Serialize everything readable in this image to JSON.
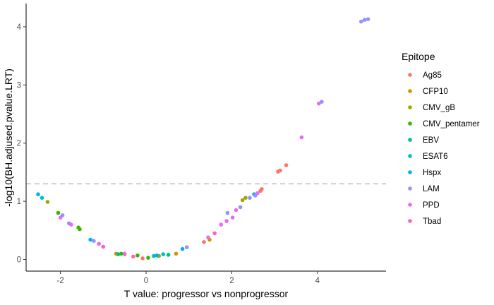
{
  "chart_data": {
    "type": "scatter",
    "title": "",
    "xlabel": "T value: progressor vs nonprogressor",
    "ylabel": "-log10(BH.adjused.pvalue.LRT)",
    "xlim": [
      -2.8,
      5.6
    ],
    "ylim": [
      -0.2,
      4.4
    ],
    "x_ticks": [
      -2,
      0,
      2,
      4
    ],
    "y_ticks": [
      0,
      1,
      2,
      3,
      4
    ],
    "reference_line": {
      "y": 1.3,
      "style": "dashed",
      "color": "#bdbdbd"
    },
    "grid": false,
    "legend_title": "Epitope",
    "legend_position": "right",
    "series": [
      {
        "name": "Ag85",
        "color": "#F8766D",
        "x": [
          -0.08,
          1.35,
          2.67,
          2.7,
          3.08,
          3.13,
          3.27
        ],
        "y": [
          0.02,
          0.3,
          1.18,
          1.21,
          1.51,
          1.53,
          1.62
        ]
      },
      {
        "name": "CFP10",
        "color": "#D89000",
        "x": [
          -0.7,
          0.7,
          1.48
        ],
        "y": [
          0.1,
          0.1,
          0.34
        ]
      },
      {
        "name": "CMV_gB",
        "color": "#A3A500",
        "x": [
          -2.3,
          -0.5,
          0.3,
          2.25,
          2.32
        ],
        "y": [
          0.99,
          0.09,
          0.06,
          1.02,
          1.06
        ]
      },
      {
        "name": "CMV_pentamer",
        "color": "#39B600",
        "x": [
          -2.05,
          -1.58,
          -1.55,
          -0.58,
          -0.2,
          0.05
        ],
        "y": [
          0.8,
          0.55,
          0.52,
          0.1,
          0.07,
          0.03
        ]
      },
      {
        "name": "EBV",
        "color": "#00BF7D",
        "x": [
          -0.65,
          0.52
        ],
        "y": [
          0.09,
          0.08
        ]
      },
      {
        "name": "ESAT6",
        "color": "#00BFC4",
        "x": [
          -2.43,
          0.18,
          0.4
        ],
        "y": [
          1.06,
          0.06,
          0.09
        ]
      },
      {
        "name": "Hspx",
        "color": "#00B0F6",
        "x": [
          -2.52,
          -1.3,
          0.25,
          0.85,
          2.52
        ],
        "y": [
          1.12,
          0.34,
          0.07,
          0.18,
          1.12
        ]
      },
      {
        "name": "LAM",
        "color": "#9590FF",
        "x": [
          -1.95,
          -1.8,
          -1.22,
          0.95,
          1.9,
          2.2,
          2.42,
          2.55,
          4.1,
          5.02,
          5.1,
          5.18
        ],
        "y": [
          0.76,
          0.62,
          0.32,
          0.21,
          0.8,
          0.9,
          1.06,
          1.1,
          2.71,
          4.09,
          4.12,
          4.13
        ]
      },
      {
        "name": "PPD",
        "color": "#E76BF3",
        "x": [
          -2.0,
          -1.75,
          -1.1,
          -0.5,
          1.45,
          1.75,
          1.88,
          2.02,
          2.1,
          2.6,
          3.63,
          4.03
        ],
        "y": [
          0.72,
          0.6,
          0.27,
          0.1,
          0.38,
          0.6,
          0.66,
          0.72,
          0.85,
          1.14,
          2.1,
          2.68
        ]
      },
      {
        "name": "Tbad",
        "color": "#FF62BC",
        "x": [
          -1.0,
          -0.3,
          1.6
        ],
        "y": [
          0.22,
          0.05,
          0.45
        ]
      }
    ]
  }
}
